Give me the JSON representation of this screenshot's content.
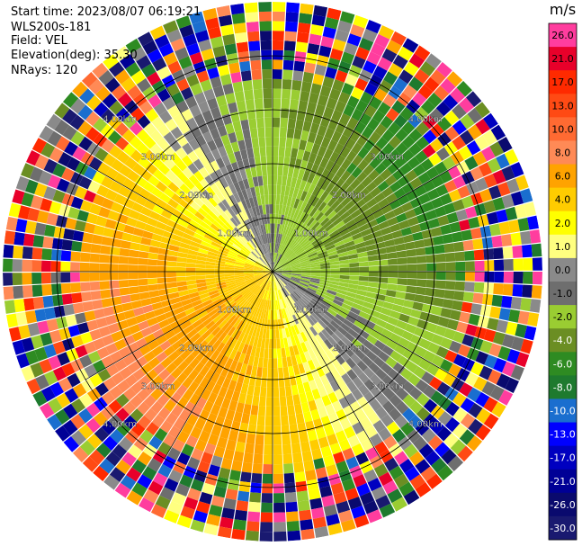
{
  "header": {
    "start_time": "Start time: 2023/08/07 06:19:21",
    "instrument": "WLS200s-181",
    "field": "Field: VEL",
    "elevation": "Elevation(deg): 35.30",
    "nrays": "NRays: 120"
  },
  "chart_data": {
    "type": "heatmap",
    "projection": "polar-ppi",
    "field": "VEL",
    "units": "m/s",
    "nrays": 120,
    "range_ring_labels": [
      "1.00km",
      "2.00km",
      "3.00km",
      "4.00km"
    ],
    "range_rings_km": [
      1,
      2,
      3,
      4
    ],
    "max_range_km": 5,
    "azimuth_grid_deg": [
      0,
      30,
      60,
      90,
      120,
      150,
      180,
      210,
      240,
      270,
      300,
      330
    ],
    "colorbar": {
      "title": "m/s",
      "levels": [
        26.0,
        21.0,
        17.0,
        13.0,
        10.0,
        8.0,
        6.0,
        4.0,
        2.0,
        1.0,
        0.0,
        -1.0,
        -2.0,
        -4.0,
        -6.0,
        -8.0,
        -10.0,
        -13.0,
        -17.0,
        -21.0,
        -26.0,
        -30.0
      ],
      "labels": [
        "26.0",
        "21.0",
        "17.0",
        "13.0",
        "10.0",
        "8.0",
        "6.0",
        "4.0",
        "2.0",
        "1.0",
        "0.0",
        "-1.0",
        "-2.0",
        "-4.0",
        "-6.0",
        "-8.0",
        "-10.0",
        "-13.0",
        "-17.0",
        "-21.0",
        "-26.0",
        "-30.0"
      ],
      "colors": [
        "#ff3d9e",
        "#e8002a",
        "#ff2a00",
        "#ff4a14",
        "#ff6a32",
        "#ff8a56",
        "#ffa300",
        "#ffcc00",
        "#ffff00",
        "#ffff80",
        "#8a8a8a",
        "#6e6e6e",
        "#9acd32",
        "#6b8e23",
        "#2e8b22",
        "#1e7a2e",
        "#1a6ecf",
        "#0000ff",
        "#0000c0",
        "#000096",
        "#0a0a6e",
        "#191970"
      ]
    }
  }
}
